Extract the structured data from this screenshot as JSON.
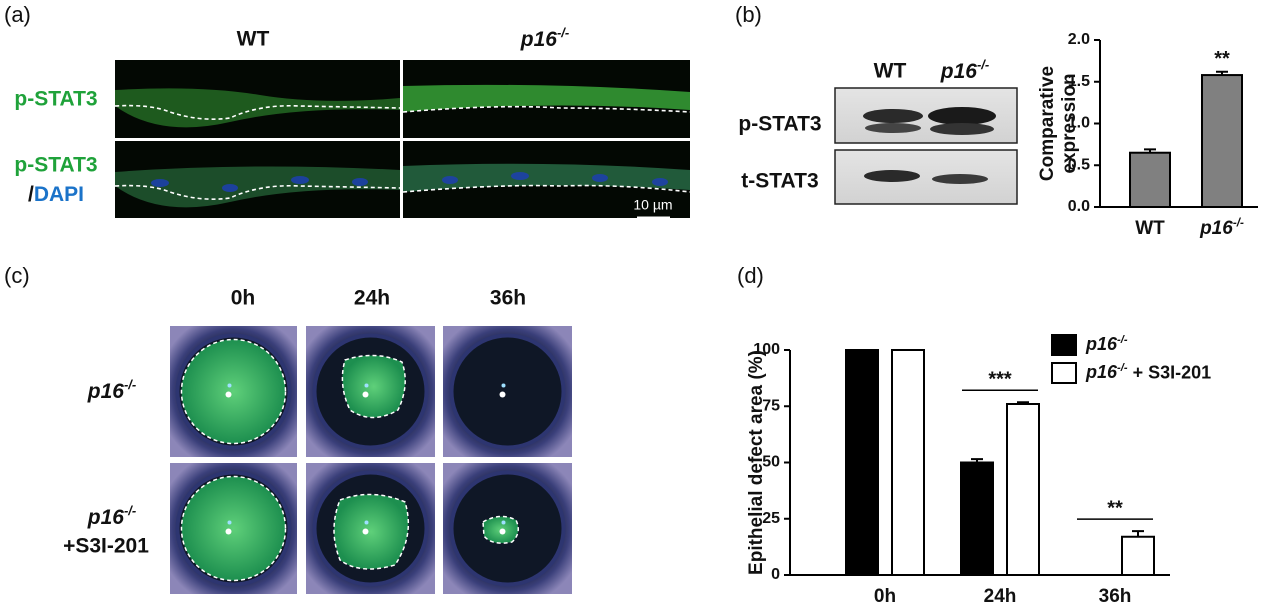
{
  "panel_labels": [
    "(a)",
    "(b)",
    "(c)",
    "(d)"
  ],
  "panel_a": {
    "columns": [
      "WT",
      "p16-/-"
    ],
    "rows": [
      [
        "p-STAT3"
      ],
      [
        "p-STAT3",
        "/",
        "DAPI"
      ]
    ],
    "scale_bar": "10 µm"
  },
  "panel_b_blot": {
    "columns": [
      "WT",
      "p16-/-"
    ],
    "rows": [
      "p-STAT3",
      "t-STAT3"
    ]
  },
  "panel_c": {
    "columns": [
      "0h",
      "24h",
      "36h"
    ],
    "rows": [
      [
        "p16-/-"
      ],
      [
        "p16-/-",
        "+S3I-201"
      ]
    ]
  },
  "chart_data": [
    {
      "type": "bar",
      "ylabel": [
        "Comparative",
        "expression"
      ],
      "categories": [
        "WT",
        "p16-/-"
      ],
      "values": [
        0.65,
        1.58
      ],
      "errors": [
        0.04,
        0.04
      ],
      "color": "#808080",
      "ylim": [
        0,
        2
      ],
      "yticks": [
        {
          "value": 0,
          "label": "0.0"
        },
        0.5,
        {
          "value": 1,
          "label": "1.0"
        },
        1.5,
        {
          "value": 2,
          "label": "2.0"
        }
      ],
      "annotations": [
        "**"
      ]
    },
    {
      "type": "bar",
      "ylabel": "Epithelial defect area (%)",
      "categories": [
        "0h",
        "24h",
        "36h"
      ],
      "series": [
        {
          "name": "p16-/-",
          "color": "#000000",
          "values": [
            100,
            50,
            0
          ],
          "errors": [
            0,
            1.5,
            0
          ]
        },
        {
          "name": "p16-/- + S3I-201",
          "color": "#ffffff",
          "values": [
            100,
            76,
            17
          ],
          "errors": [
            0,
            0.8,
            2.5
          ]
        }
      ],
      "ylim": [
        0,
        100
      ],
      "yticks": [
        0,
        25,
        50,
        75,
        100
      ],
      "annotations": [
        "***",
        "**"
      ]
    }
  ]
}
